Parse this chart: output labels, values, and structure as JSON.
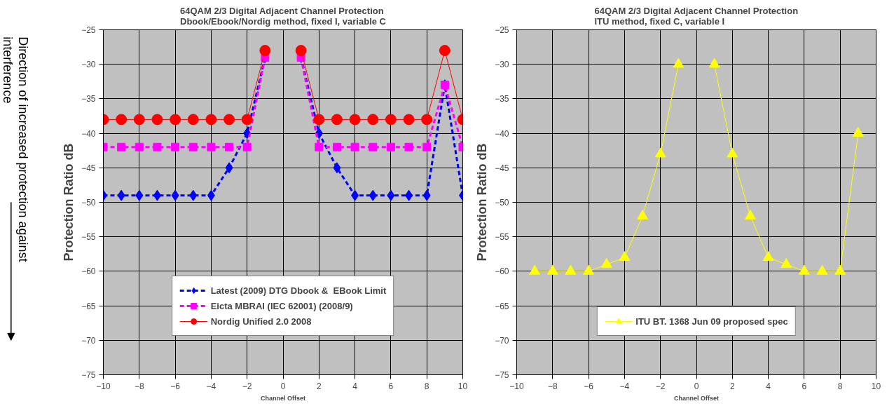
{
  "chart_data": [
    {
      "type": "line",
      "title": "64QAM 2/3 Digital Adjacent Channel Protection\nDbook/Ebook/Nordig method, fixed I, variable C",
      "xlabel": "Channel Offset",
      "ylabel": "Protection Ratio dB",
      "annotations": [
        "Direction of increased protection against\ninterference"
      ],
      "x": [
        -10,
        -9,
        -8,
        -7,
        -6,
        -5,
        -4,
        -3,
        -2,
        -1,
        0,
        1,
        2,
        3,
        4,
        5,
        6,
        7,
        8,
        9,
        10
      ],
      "series": [
        {
          "name": "Latest (2009) DTG Dbook &  EBook Limit",
          "color": "#0000ff",
          "marker": "diamond",
          "line_style": "dashed",
          "values": [
            -49,
            -49,
            -49,
            -49,
            -49,
            -49,
            -49,
            -45,
            -40,
            -29,
            null,
            -29,
            -40,
            -45,
            -49,
            -49,
            -49,
            -49,
            -49,
            -33,
            -49
          ]
        },
        {
          "name": "Eicta MBRAI (IEC 62001) (2008/9)",
          "color": "#ff00ff",
          "marker": "square",
          "line_style": "dashed",
          "values": [
            -42,
            -42,
            -42,
            -42,
            -42,
            -42,
            -42,
            -42,
            -42,
            -29,
            null,
            -29,
            -42,
            -42,
            -42,
            -42,
            -42,
            -42,
            -42,
            -33,
            -42
          ]
        },
        {
          "name": "Nordig Unified 2.0 2008",
          "color": "#ff0000",
          "marker": "circle",
          "line_style": "solid",
          "values": [
            -38,
            -38,
            -38,
            -38,
            -38,
            -38,
            -38,
            -38,
            -38,
            -28,
            null,
            -28,
            -38,
            -38,
            -38,
            -38,
            -38,
            -38,
            -38,
            -28,
            -38
          ]
        }
      ],
      "xlim": [
        -10,
        10
      ],
      "xticks": [
        -10,
        -8,
        -6,
        -4,
        -2,
        0,
        2,
        4,
        6,
        8,
        10
      ],
      "ylim": [
        -75,
        -25
      ],
      "yticks": [
        -25,
        -30,
        -35,
        -40,
        -45,
        -50,
        -55,
        -60,
        -65,
        -70,
        -75
      ],
      "grid": true,
      "legend": "bottom"
    },
    {
      "type": "line",
      "title": "64QAM 2/3 Digital Adjacent Channel Protection\nITU method, fixed C, variable I",
      "xlabel": "Channel Offset",
      "ylabel": "Protection Ratio dB",
      "x": [
        -9,
        -8,
        -7,
        -6,
        -5,
        -4,
        -3,
        -2,
        -1,
        0,
        1,
        2,
        3,
        4,
        5,
        6,
        7,
        8,
        9
      ],
      "series": [
        {
          "name": "ITU BT. 1368 Jun 09 proposed spec",
          "color": "#ffff00",
          "marker": "triangle",
          "line_style": "solid",
          "values": [
            -60,
            -60,
            -60,
            -60,
            -59,
            -58,
            -52,
            -43,
            -30,
            null,
            -30,
            -43,
            -52,
            -58,
            -59,
            -60,
            -60,
            -60,
            -40
          ]
        }
      ],
      "xlim": [
        -10,
        10
      ],
      "xticks": [
        -10,
        -8,
        -6,
        -4,
        -2,
        0,
        2,
        4,
        6,
        8,
        10
      ],
      "ylim": [
        -75,
        -25
      ],
      "yticks": [
        -25,
        -30,
        -35,
        -40,
        -45,
        -50,
        -55,
        -60,
        -65,
        -70,
        -75
      ],
      "grid": true,
      "legend": "bottom"
    }
  ]
}
